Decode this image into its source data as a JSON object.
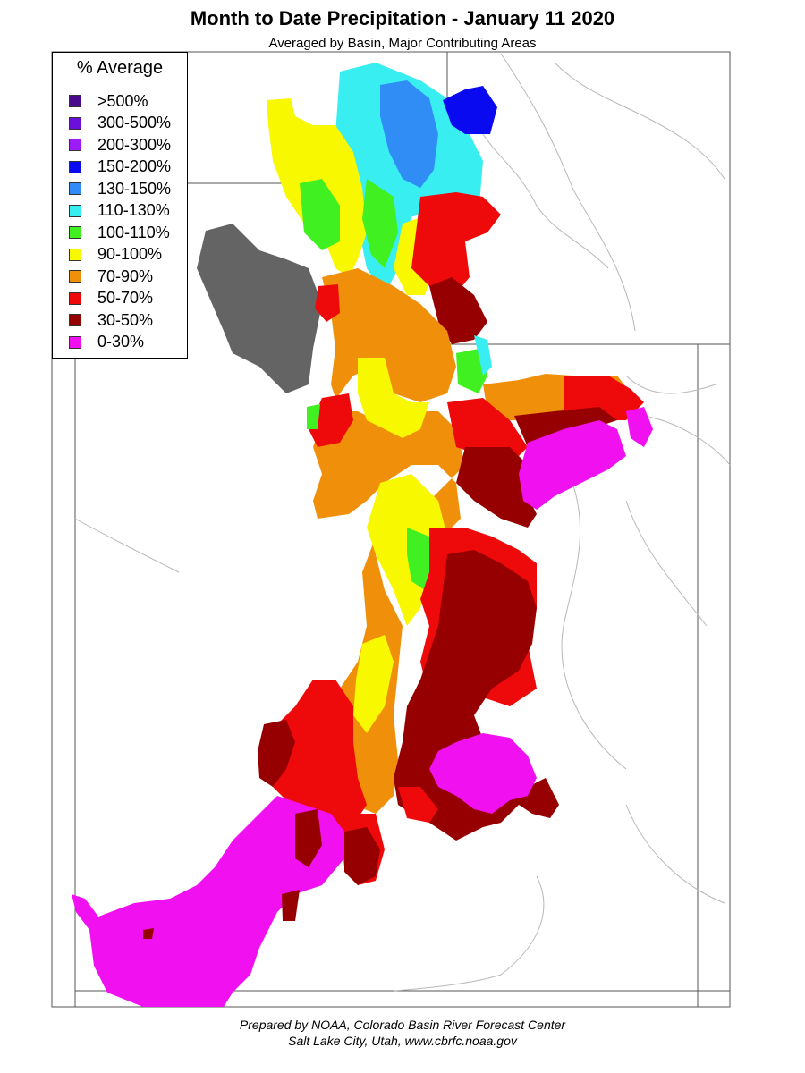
{
  "header": {
    "title": "Month to Date Precipitation - January 11 2020",
    "subtitle": "Averaged by Basin, Major Contributing Areas"
  },
  "legend": {
    "title": "% Average",
    "items": [
      {
        "label": ">500%",
        "color": "#4a0a8c"
      },
      {
        "label": "300-500%",
        "color": "#6a10d8"
      },
      {
        "label": "200-300%",
        "color": "#9b1cf5"
      },
      {
        "label": "150-200%",
        "color": "#0a0af0"
      },
      {
        "label": "130-150%",
        "color": "#2f8df5"
      },
      {
        "label": "110-130%",
        "color": "#38eef0"
      },
      {
        "label": "100-110%",
        "color": "#40f020"
      },
      {
        "label": "90-100%",
        "color": "#f8f800"
      },
      {
        "label": "70-90%",
        "color": "#f0900a"
      },
      {
        "label": "50-70%",
        "color": "#ee0a0a"
      },
      {
        "label": "30-50%",
        "color": "#960000"
      },
      {
        "label": "0-30%",
        "color": "#f010f0"
      }
    ]
  },
  "footer": {
    "line1": "Prepared by NOAA, Colorado Basin River Forecast Center",
    "line2": "Salt Lake City, Utah, www.cbrfc.noaa.gov"
  },
  "colors": {
    "no_data_lake": "#646464",
    "state_border": "#555555",
    "river_line": "#b0b0b0"
  }
}
